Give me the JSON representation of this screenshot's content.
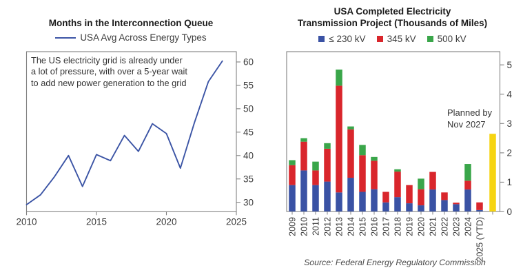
{
  "chart_data": [
    {
      "type": "line",
      "title": "Months in the Interconnection Queue",
      "legend": [
        {
          "name": "USA Avg Across Energy Types",
          "color": "#3b54a5"
        }
      ],
      "legend_position": "top",
      "annotation": "The US electricity grid is already under\na lot of pressure, with over a 5-year wait\nto add new power generation to the grid",
      "x": [
        2010,
        2011,
        2012,
        2013,
        2014,
        2015,
        2016,
        2017,
        2018,
        2019,
        2020,
        2021,
        2022,
        2023,
        2024
      ],
      "series": [
        {
          "name": "USA Avg Across Energy Types",
          "color": "#3b54a5",
          "values": [
            29.5,
            31.6,
            35.5,
            40.0,
            33.4,
            40.2,
            38.9,
            44.3,
            40.9,
            46.8,
            44.7,
            37.3,
            47.0,
            55.8,
            60.2
          ]
        }
      ],
      "xlabel": "",
      "ylabel": "",
      "xlim": [
        2010,
        2025
      ],
      "ylim": [
        28,
        62.2
      ],
      "xticks": [
        2010,
        2015,
        2020,
        2025
      ],
      "yticks": [
        30,
        35,
        40,
        45,
        50,
        55,
        60
      ],
      "y_axis_side": "right",
      "grid": false
    },
    {
      "type": "bar",
      "stacked": true,
      "title": "USA Completed Electricity\nTransmission Project (Thousands of Miles)",
      "categories": [
        "2009",
        "2010",
        "2011",
        "2012",
        "2013",
        "2014",
        "2015",
        "2016",
        "2017",
        "2018",
        "2019",
        "2020",
        "2021",
        "2022",
        "2023",
        "2024",
        "2025 (YTD)"
      ],
      "series": [
        {
          "name": "≤ 230 kV",
          "color": "#3a52a4",
          "values": [
            0.9,
            1.4,
            0.9,
            1.02,
            0.65,
            1.15,
            0.67,
            0.76,
            0.31,
            0.49,
            0.28,
            0.21,
            0.75,
            0.39,
            0.25,
            0.75,
            0.05
          ]
        },
        {
          "name": "345 kV",
          "color": "#d9262c",
          "values": [
            0.68,
            0.98,
            0.5,
            1.12,
            3.64,
            1.65,
            1.25,
            0.97,
            0.36,
            0.87,
            0.62,
            0.55,
            0.6,
            0.26,
            0.05,
            0.3,
            0.26
          ]
        },
        {
          "name": "500 kV",
          "color": "#3aa64a",
          "values": [
            0.17,
            0.12,
            0.3,
            0.19,
            0.55,
            0.1,
            0.35,
            0.13,
            0.0,
            0.08,
            0.0,
            0.36,
            0.0,
            0.0,
            0.0,
            0.57,
            0.0
          ]
        }
      ],
      "planned_bar": {
        "label": "Planned by\nNov 2027",
        "value": 2.65,
        "color": "#f6d411"
      },
      "xlabel": "",
      "ylabel": "",
      "ylim": [
        0,
        5.45
      ],
      "yticks": [
        0,
        1,
        2,
        3,
        4,
        5
      ],
      "y_axis_side": "right",
      "grid": false,
      "source": "Source: Federal Energy Regulatory Commission"
    }
  ]
}
